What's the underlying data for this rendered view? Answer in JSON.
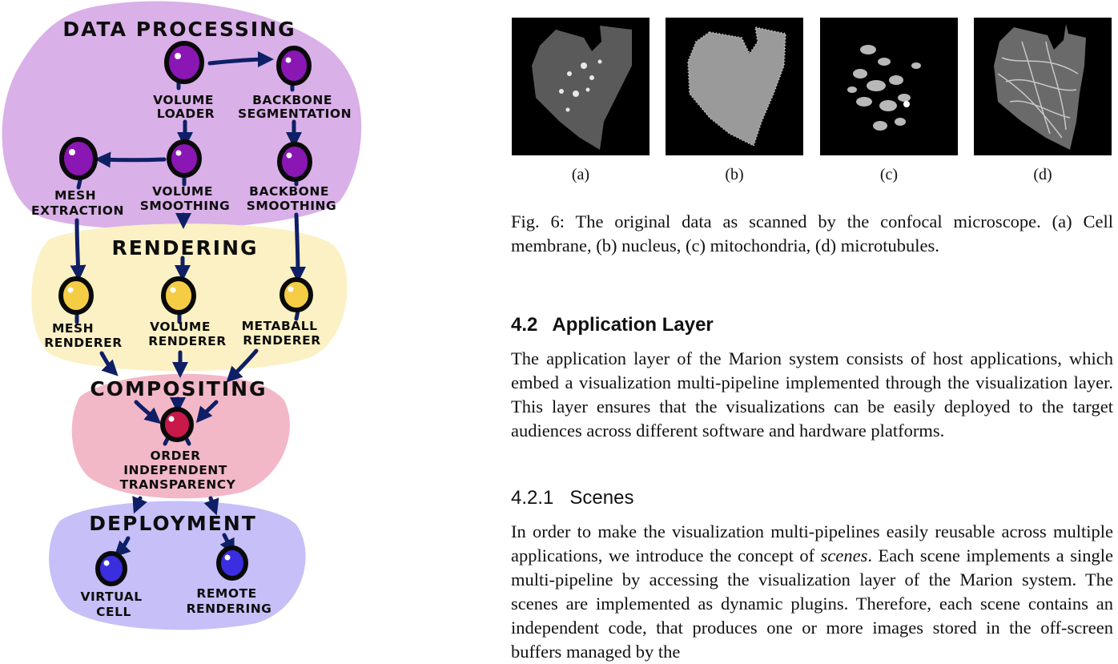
{
  "diagram": {
    "sections": {
      "data_processing": "DATA PROCESSING",
      "rendering": "RENDERING",
      "compositing": "COMPOSITING",
      "deployment": "DEPLOYMENT"
    },
    "nodes": {
      "volume_loader": [
        "VOLUME",
        "LOADER"
      ],
      "backbone_segmentation": [
        "BACKBONE",
        "SEGMENTATION"
      ],
      "mesh_extraction": [
        "MESH",
        "EXTRACTION"
      ],
      "volume_smoothing": [
        "VOLUME",
        "SMOOTHING"
      ],
      "backbone_smoothing": [
        "BACKBONE",
        "SMOOTHING"
      ],
      "mesh_renderer": [
        "MESH",
        "RENDERER"
      ],
      "volume_renderer": [
        "VOLUME",
        "RENDERER"
      ],
      "metaball_renderer": [
        "METABALL",
        "RENDERER"
      ],
      "oit": [
        "ORDER",
        "INDEPENDENT",
        "TRANSPARENCY"
      ],
      "virtual_cell": [
        "VIRTUAL",
        "CELL"
      ],
      "remote_rendering": [
        "REMOTE",
        "RENDERING"
      ]
    },
    "colors": {
      "data_processing_bg": "#d9b0e8",
      "rendering_bg": "#fbf1c4",
      "compositing_bg": "#f2b8c8",
      "deployment_bg": "#c6bff8",
      "purple_node": "#8a16b4",
      "yellow_node": "#f5cd45",
      "red_node": "#c8194a",
      "blue_node": "#3a2ee0",
      "arrow": "#0f1f66"
    }
  },
  "figure": {
    "subfigures": [
      "(a)",
      "(b)",
      "(c)",
      "(d)"
    ],
    "caption": "Fig. 6: The original data as scanned by the confocal microscope. (a) Cell membrane, (b) nucleus, (c) mitochondria, (d) microtubules."
  },
  "section": {
    "number": "4.2",
    "title": "Application Layer",
    "paragraph": "The application layer of the Marion system consists of host applications, which embed a visualization multi-pipeline implemented through the visualization layer. This layer ensures that the visualizations can be easily deployed to the target audiences across different software and hardware platforms."
  },
  "subsection": {
    "number": "4.2.1",
    "title": "Scenes",
    "paragraph_before": "In order to make the visualization multi-pipelines easily reusable across multiple applications, we introduce the concept of ",
    "paragraph_emphasis": "scenes",
    "paragraph_after": ". Each scene implements a single multi-pipeline by accessing the visualization layer of the Marion system. The scenes are implemented as dynamic plugins. Therefore, each scene contains an independent code, that produces one or more images stored in the off-screen buffers managed by the"
  }
}
